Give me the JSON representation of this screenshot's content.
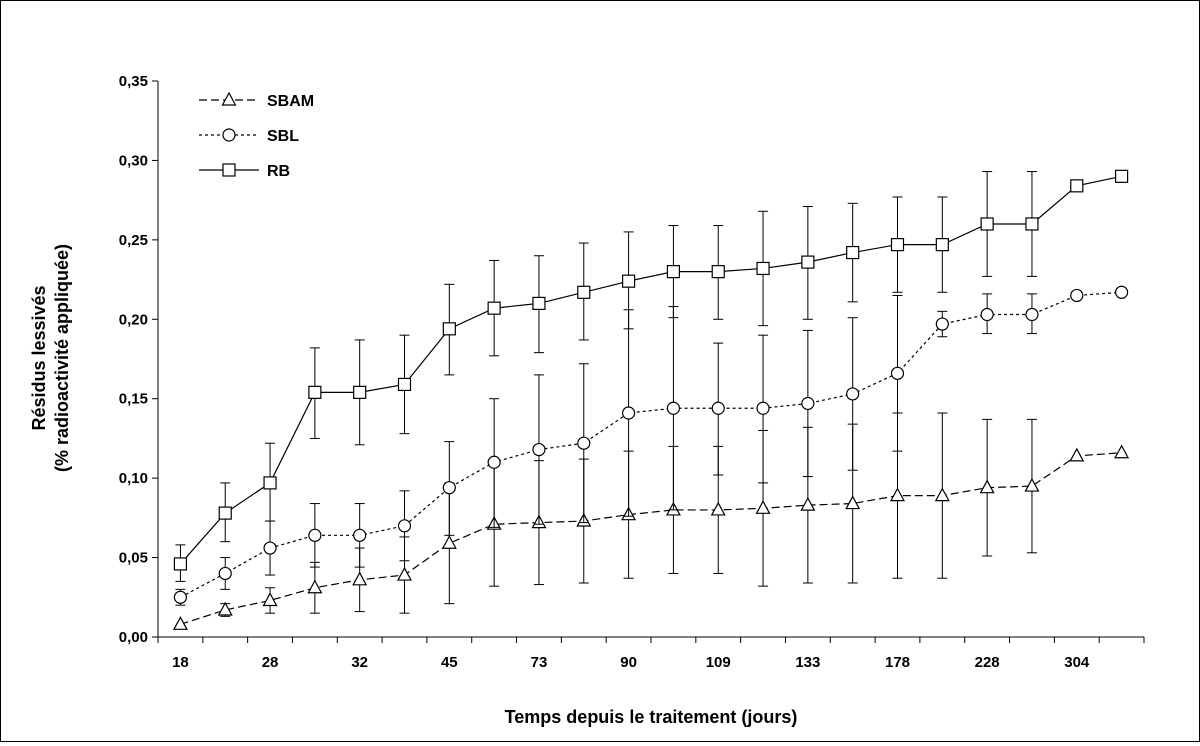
{
  "chart_data": {
    "type": "line",
    "title": "",
    "xlabel": "Temps depuis le traitement (jours)",
    "ylabel_line1": "Résidus lessivés",
    "ylabel_line2": "(% radioactivité appliquée)",
    "ylim": [
      0,
      0.35
    ],
    "yticks": [
      "0,00",
      "0,05",
      "0,10",
      "0,15",
      "0,20",
      "0,25",
      "0,30",
      "0,35"
    ],
    "x_tick_labels": [
      "18",
      "28",
      "32",
      "45",
      "73",
      "90",
      "109",
      "133",
      "178",
      "228",
      "304"
    ],
    "points_per_series": 22,
    "grid": false,
    "legend_position": "top-left",
    "series": [
      {
        "name": "SBAM",
        "marker": "triangle",
        "line_style": "dashed",
        "values": [
          0.008,
          0.017,
          0.023,
          0.031,
          0.036,
          0.039,
          0.059,
          0.071,
          0.072,
          0.073,
          0.077,
          0.08,
          0.08,
          0.081,
          0.083,
          0.084,
          0.089,
          0.089,
          0.094,
          0.095,
          0.114,
          0.116
        ],
        "error_low": [
          0.008,
          0.013,
          0.015,
          0.015,
          0.016,
          0.015,
          0.021,
          0.032,
          0.033,
          0.034,
          0.037,
          0.04,
          0.04,
          0.032,
          0.034,
          0.034,
          0.037,
          0.037,
          0.051,
          0.053,
          0.114,
          0.116
        ],
        "error_high": [
          0.008,
          0.021,
          0.031,
          0.047,
          0.056,
          0.063,
          0.097,
          0.11,
          0.111,
          0.112,
          0.117,
          0.12,
          0.12,
          0.13,
          0.132,
          0.134,
          0.141,
          0.141,
          0.137,
          0.137,
          0.114,
          0.116
        ]
      },
      {
        "name": "SBL",
        "marker": "circle",
        "line_style": "dotted",
        "values": [
          0.025,
          0.04,
          0.056,
          0.064,
          0.064,
          0.07,
          0.094,
          0.11,
          0.118,
          0.122,
          0.141,
          0.144,
          0.144,
          0.144,
          0.147,
          0.153,
          0.166,
          0.197,
          0.203,
          0.203,
          0.215,
          0.217
        ],
        "error_low": [
          0.02,
          0.03,
          0.039,
          0.044,
          0.044,
          0.048,
          0.064,
          0.069,
          0.071,
          0.072,
          0.076,
          0.08,
          0.102,
          0.097,
          0.101,
          0.105,
          0.117,
          0.189,
          0.191,
          0.191,
          0.215,
          0.217
        ],
        "error_high": [
          0.03,
          0.05,
          0.073,
          0.084,
          0.084,
          0.092,
          0.123,
          0.15,
          0.165,
          0.172,
          0.206,
          0.208,
          0.185,
          0.19,
          0.193,
          0.201,
          0.215,
          0.205,
          0.216,
          0.216,
          0.215,
          0.217
        ]
      },
      {
        "name": "RB",
        "marker": "square",
        "line_style": "solid",
        "values": [
          0.046,
          0.078,
          0.097,
          0.154,
          0.154,
          0.159,
          0.194,
          0.207,
          0.21,
          0.217,
          0.224,
          0.23,
          0.23,
          0.232,
          0.236,
          0.242,
          0.247,
          0.247,
          0.26,
          0.26,
          0.284,
          0.29
        ],
        "error_low": [
          0.035,
          0.06,
          0.073,
          0.125,
          0.121,
          0.128,
          0.165,
          0.177,
          0.179,
          0.187,
          0.194,
          0.201,
          0.2,
          0.196,
          0.2,
          0.211,
          0.217,
          0.217,
          0.227,
          0.227,
          0.284,
          0.29
        ],
        "error_high": [
          0.058,
          0.097,
          0.122,
          0.182,
          0.187,
          0.19,
          0.222,
          0.237,
          0.24,
          0.248,
          0.255,
          0.259,
          0.259,
          0.268,
          0.271,
          0.273,
          0.277,
          0.277,
          0.293,
          0.293,
          0.284,
          0.29
        ]
      }
    ]
  }
}
